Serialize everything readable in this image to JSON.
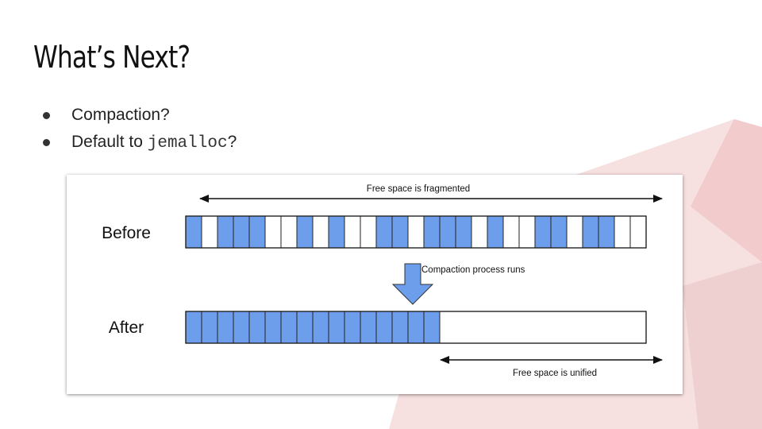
{
  "slide": {
    "title": "What’s Next?",
    "bullets": [
      {
        "text": "Compaction?",
        "code": "",
        "suffix": ""
      },
      {
        "text": "Default to ",
        "code": "jemalloc",
        "suffix": "?"
      }
    ]
  },
  "diagram": {
    "before_label": "Before",
    "after_label": "After",
    "top_arrow_label": "Free space is fragmented",
    "process_label": "Compaction process runs",
    "bottom_arrow_label": "Free space is unified",
    "before_cells": [
      1,
      0,
      1,
      1,
      1,
      0,
      0,
      1,
      0,
      1,
      0,
      0,
      1,
      1,
      0,
      1,
      1,
      1,
      0,
      1,
      0,
      0,
      1,
      1,
      0,
      1,
      1,
      0,
      0
    ],
    "after_filled_count": 16,
    "colors": {
      "filled": "#6d9eeb",
      "empty": "#ffffff",
      "outline": "#222222",
      "accent": "#e06666"
    }
  }
}
